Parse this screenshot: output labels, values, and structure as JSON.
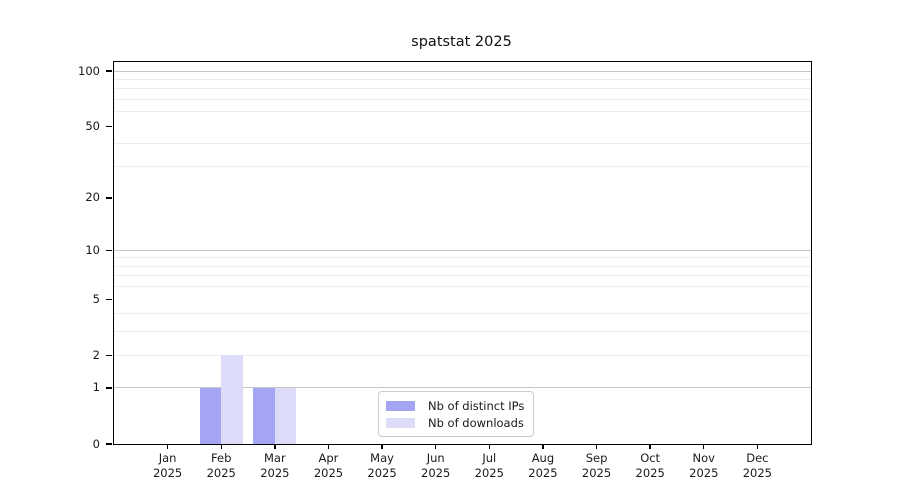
{
  "chart_data": {
    "type": "bar",
    "title": "spatstat 2025",
    "xlabel": "",
    "ylabel": "",
    "x_year": "2025",
    "categories": [
      "Jan",
      "Feb",
      "Mar",
      "Apr",
      "May",
      "Jun",
      "Jul",
      "Aug",
      "Sep",
      "Oct",
      "Nov",
      "Dec"
    ],
    "series": [
      {
        "name": "Nb of distinct IPs",
        "color": "#a5a5f5",
        "values": [
          0,
          1,
          1,
          0,
          0,
          0,
          0,
          0,
          0,
          0,
          0,
          0
        ]
      },
      {
        "name": "Nb of downloads",
        "color": "#dcdcf8",
        "values": [
          0,
          2,
          1,
          0,
          0,
          0,
          0,
          0,
          0,
          0,
          0,
          0
        ]
      }
    ],
    "yscale": "log1p",
    "ylim": [
      0,
      112
    ],
    "yticks": [
      0,
      1,
      2,
      5,
      10,
      20,
      50,
      100
    ],
    "major_gridlines": [
      1,
      10,
      100
    ],
    "minor_gridlines": [
      2,
      3,
      4,
      6,
      7,
      8,
      9,
      30,
      40,
      60,
      70,
      80,
      90
    ],
    "grid": true,
    "legend_position": "bottom-center",
    "colors": {
      "axis": "#000000",
      "grid_major": "#c6c6c6",
      "grid_minor": "#ededed",
      "text": "#1a1a1a",
      "legend_border": "#cccccc"
    }
  }
}
